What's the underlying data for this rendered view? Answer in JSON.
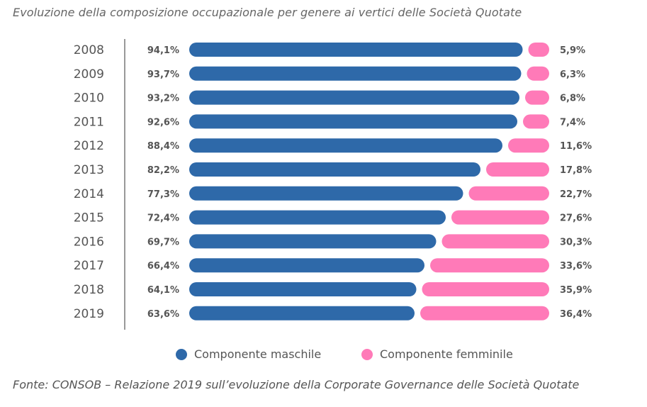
{
  "title": "Evoluzione della composizione occupazionale per genere ai vertici delle Società Quotate",
  "source": "Fonte: CONSOB – Relazione 2019 sull’evoluzione della Corporate Governance delle Società Quotate",
  "colors": {
    "maschile": "#2e69a9",
    "femminile": "#ff7ab8",
    "axis": "#999999"
  },
  "legend": {
    "maschile": "Componente maschile",
    "femminile": "Componente femminile"
  },
  "chart_data": {
    "type": "bar",
    "orientation": "horizontal-stacked",
    "categories": [
      "2008",
      "2009",
      "2010",
      "2011",
      "2012",
      "2013",
      "2014",
      "2015",
      "2016",
      "2017",
      "2018",
      "2019"
    ],
    "series": [
      {
        "name": "Componente maschile",
        "values": [
          94.1,
          93.7,
          93.2,
          92.6,
          88.4,
          82.2,
          77.3,
          72.4,
          69.7,
          66.4,
          64.1,
          63.6
        ],
        "labels": [
          "94,1%",
          "93,7%",
          "93,2%",
          "92,6%",
          "88,4%",
          "82,2%",
          "77,3%",
          "72,4%",
          "69,7%",
          "66,4%",
          "64,1%",
          "63,6%"
        ]
      },
      {
        "name": "Componente femminile",
        "values": [
          5.9,
          6.3,
          6.8,
          7.4,
          11.6,
          17.8,
          22.7,
          27.6,
          30.3,
          33.6,
          35.9,
          36.4
        ],
        "labels": [
          "5,9%",
          "6,3%",
          "6,8%",
          "7,4%",
          "11,6%",
          "17,8%",
          "22,7%",
          "27,6%",
          "30,3%",
          "33,6%",
          "35,9%",
          "36,4%"
        ]
      }
    ],
    "xlim": [
      0,
      100
    ],
    "grid": false,
    "legend_position": "bottom"
  }
}
